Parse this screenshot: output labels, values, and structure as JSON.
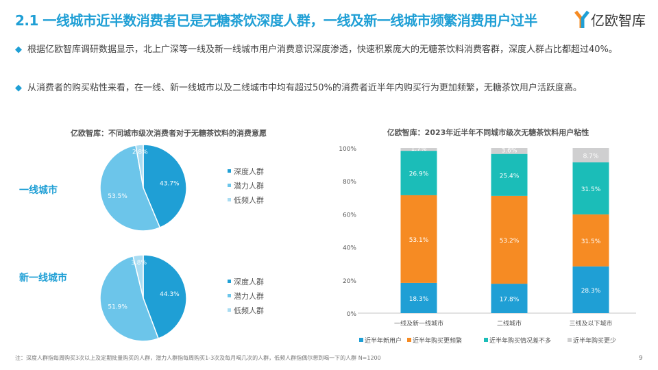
{
  "header": {
    "title": "2.1 一线城市近半数消费者已是无糖茶饮深度人群，一线及新一线城市频繁消费用户过半",
    "logo_text": "亿欧智库"
  },
  "bullets": [
    "根据亿欧智库调研数据显示，北上广深等一线及新一线城市用户消费意识深度渗透，快速积累庞大的无糖茶饮料消费客群，深度人群占比都超过40%。",
    "从消费者的购买粘性来看，在一线、新一线城市以及二线城市中均有超过50%的消费者近半年内购买行为更加频繁，无糖茶饮用户活跃度高。"
  ],
  "footer": {
    "note": "注：深度人群指每周购买3次以上及定期批量购买的人群，潜力人群指每周购买1-3次及每月喝几次的人群，低频人群指偶尔想到喝一下的人群  N=1200",
    "page": "9"
  },
  "colors": {
    "accent": "#1f9fd5",
    "deep": "#1f9fd5",
    "potential": "#6cc5ea",
    "low": "#a9dcf2",
    "new": "#1f9fd5",
    "more": "#f68b23",
    "same": "#1bbdb8",
    "less": "#cfcfd0"
  },
  "chart_data": [
    {
      "type": "pie",
      "title": "亿欧智库：不同城市级次消费者对于无糖茶饮料的消费意愿",
      "legend": [
        "深度人群",
        "潜力人群",
        "低频人群"
      ],
      "pies": [
        {
          "label": "一线城市",
          "values": [
            43.7,
            53.5,
            2.8
          ],
          "labels": [
            "43.7%",
            "53.5%",
            "2.8%"
          ]
        },
        {
          "label": "新一线城市",
          "values": [
            44.3,
            51.9,
            3.8
          ],
          "labels": [
            "44.3%",
            "51.9%",
            "3.8%"
          ]
        }
      ]
    },
    {
      "type": "bar",
      "stacked": true,
      "title": "亿欧智库：2023年近半年不同城市级次无糖茶饮料用户粘性",
      "categories": [
        "一线及新一线城市",
        "二线城市",
        "三线及以下城市"
      ],
      "ylim": [
        0,
        100
      ],
      "yticks": [
        "0%",
        "20%",
        "40%",
        "60%",
        "80%",
        "100%"
      ],
      "legend_position": "bottom",
      "series": [
        {
          "name": "近半年新用户",
          "values": [
            18.3,
            17.8,
            28.3
          ],
          "labels": [
            "18.3%",
            "17.8%",
            "28.3%"
          ]
        },
        {
          "name": "近半年购买更频繁",
          "values": [
            53.1,
            53.2,
            31.5
          ],
          "labels": [
            "53.1%",
            "53.2%",
            "31.5%"
          ]
        },
        {
          "name": "近半年购买情况差不多",
          "values": [
            26.9,
            25.4,
            31.5
          ],
          "labels": [
            "26.9%",
            "25.4%",
            "31.5%"
          ]
        },
        {
          "name": "近半年购买更少",
          "values": [
            1.7,
            3.6,
            8.7
          ],
          "labels": [
            "1.7%",
            "3.6%",
            "8.7%"
          ]
        }
      ]
    }
  ]
}
